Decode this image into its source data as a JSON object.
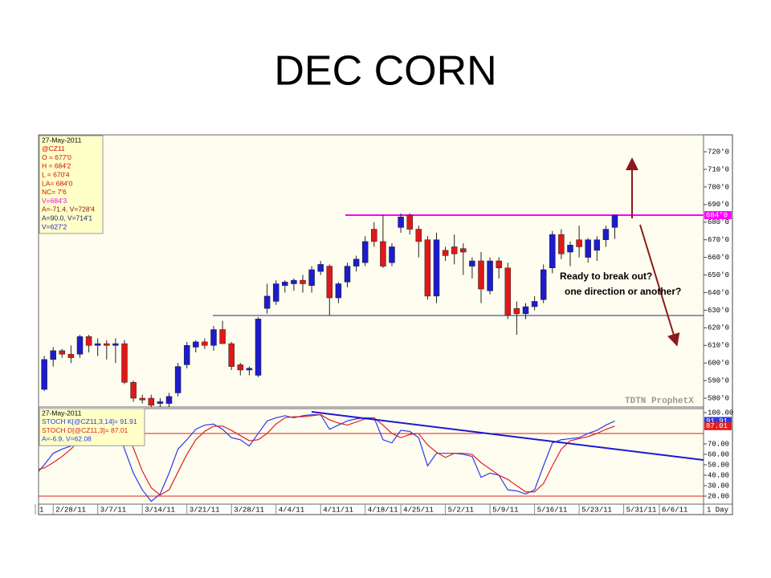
{
  "title": "DEC CORN",
  "chart_data": [
    {
      "type": "candlestick",
      "up_color": "#1c1ccc",
      "down_color": "#e01818",
      "ylim": [
        575,
        729.6
      ],
      "yticks": [
        {
          "value": 720,
          "label": "720'0"
        },
        {
          "value": 710,
          "label": "710'0"
        },
        {
          "value": 700,
          "label": "700'0"
        },
        {
          "value": 690,
          "label": "690'0"
        },
        {
          "value": 680,
          "label": "680'0"
        },
        {
          "value": 670,
          "label": "670'0"
        },
        {
          "value": 660,
          "label": "660'0"
        },
        {
          "value": 650,
          "label": "650'0"
        },
        {
          "value": 640,
          "label": "640'0"
        },
        {
          "value": 630,
          "label": "630'0"
        },
        {
          "value": 620,
          "label": "620'0"
        },
        {
          "value": 610,
          "label": "610'0"
        },
        {
          "value": 600,
          "label": "600'0"
        },
        {
          "value": 590,
          "label": "590'0"
        },
        {
          "value": 580,
          "label": "580'0"
        }
      ],
      "open": [
        null,
        585,
        602,
        607,
        605,
        605,
        615,
        610,
        611,
        610,
        611,
        589,
        580,
        580,
        577,
        577,
        583,
        599,
        609,
        612,
        610,
        619,
        611,
        599,
        596,
        593,
        631,
        635,
        644,
        645,
        647,
        644,
        652,
        655,
        637,
        646,
        655,
        657,
        676,
        669,
        657,
        677,
        684,
        676,
        670,
        638,
        664,
        666,
        665,
        655,
        658,
        641,
        658,
        654,
        631,
        628,
        632,
        636,
        654,
        673,
        663,
        670,
        660,
        664,
        670,
        677,
        null,
        null,
        null,
        null,
        null,
        null,
        null,
        null,
        null,
        null
      ],
      "high": [
        null,
        604,
        609,
        608,
        610,
        616,
        616,
        614,
        613,
        614,
        613,
        590,
        582,
        582,
        580,
        583,
        600,
        612,
        613,
        614,
        621,
        624,
        612,
        600,
        598,
        626,
        645,
        647,
        647,
        648,
        650,
        655,
        658,
        656,
        646,
        657,
        661,
        672,
        680,
        684,
        668,
        685,
        685,
        678,
        672,
        674,
        666,
        673,
        668,
        660,
        663,
        660,
        660,
        657,
        635,
        634,
        638,
        656,
        675,
        676,
        669,
        678,
        671,
        672,
        678,
        684.25,
        null,
        null,
        null,
        null,
        null,
        null,
        null,
        null,
        null,
        null
      ],
      "low": [
        null,
        584,
        598,
        603,
        600,
        603,
        606,
        604,
        602,
        600,
        588,
        578,
        577,
        574,
        575,
        575,
        581,
        597,
        606,
        608,
        607,
        611,
        596,
        593,
        593,
        592,
        628,
        633,
        640,
        641,
        640,
        640,
        650,
        627,
        634,
        643,
        652,
        655,
        666,
        654,
        655,
        674,
        673,
        660,
        636,
        634,
        658,
        656,
        650,
        648,
        634,
        639,
        648,
        625,
        616,
        625,
        630,
        634,
        651,
        659,
        655,
        660,
        657,
        658,
        666,
        670.5,
        null,
        null,
        null,
        null,
        null,
        null,
        null,
        null,
        null,
        null
      ],
      "close": [
        null,
        602,
        607,
        605,
        603,
        615,
        610,
        611,
        610,
        611,
        589,
        580,
        579,
        576,
        578,
        581,
        598,
        610,
        612,
        610,
        619,
        611,
        598,
        596,
        597,
        625,
        638,
        645,
        646,
        647,
        645,
        653,
        656,
        637,
        645,
        655,
        659,
        669,
        669,
        655,
        666,
        683,
        676,
        669,
        638,
        670,
        661,
        662,
        663,
        658,
        642,
        658,
        654,
        627,
        628,
        632,
        635,
        653,
        673,
        662,
        667,
        666,
        670,
        670,
        676,
        684,
        null,
        null,
        null,
        null,
        null,
        null,
        null,
        null,
        null,
        null
      ],
      "hlines": [
        {
          "value": 684,
          "color": "#ff00ff"
        },
        {
          "value": 627,
          "color": "#1a2a8c"
        }
      ],
      "last_price": {
        "value": 684,
        "label": "684'0",
        "color": "#ff00ff"
      },
      "legend_lines": [
        {
          "text": "27-May-2011",
          "color": "#000000"
        },
        {
          "text": "@CZ11",
          "color": "#d01010"
        },
        {
          "text": "O = 677'0",
          "color": "#d01010"
        },
        {
          "text": "H = 684'2",
          "color": "#d01010"
        },
        {
          "text": "L = 670'4",
          "color": "#d01010"
        },
        {
          "text": "LA= 684'0",
          "color": "#d01010"
        },
        {
          "text": "NC= 7'6",
          "color": "#d01010"
        },
        {
          "text": "V=684'3",
          "color": "#e010e0"
        },
        {
          "text": "A=-71.4, V=728'4",
          "color": "#8b1010"
        },
        {
          "text": "A=90.0, V=714'1",
          "color": "#1a1a6c"
        },
        {
          "text": "V=627'2",
          "color": "#2020d0"
        }
      ],
      "annotations": [
        "Ready to break out?",
        "one direction or another?"
      ],
      "watermark": "TDTN ProphetX"
    },
    {
      "type": "line",
      "ylim": [
        12.3,
        103.8
      ],
      "yticks": [
        {
          "value": 100,
          "label": "100.00"
        },
        {
          "value": 70,
          "label": "70.00"
        },
        {
          "value": 60,
          "label": "60.00"
        },
        {
          "value": 50,
          "label": "50.00"
        },
        {
          "value": 40,
          "label": "40.00"
        },
        {
          "value": 30,
          "label": "30.00"
        },
        {
          "value": 20,
          "label": "20.00"
        }
      ],
      "categories": [
        "1",
        null,
        "2/28/11",
        null,
        null,
        null,
        null,
        "3/7/11",
        null,
        null,
        null,
        null,
        "3/14/11",
        null,
        null,
        null,
        null,
        "3/21/11",
        null,
        null,
        null,
        null,
        "3/28/11",
        null,
        null,
        null,
        null,
        "4/4/11",
        null,
        null,
        null,
        null,
        "4/11/11",
        null,
        null,
        null,
        null,
        "4/18/11",
        null,
        null,
        null,
        "4/25/11",
        null,
        null,
        null,
        null,
        "5/2/11",
        null,
        null,
        null,
        null,
        "5/9/11",
        null,
        null,
        null,
        null,
        "5/16/11",
        null,
        null,
        null,
        null,
        "5/23/11",
        null,
        null,
        null,
        null,
        "5/31/11",
        null,
        null,
        null,
        "6/6/11",
        null,
        null,
        null,
        null,
        null
      ],
      "series": [
        {
          "name": "STOCH K",
          "color": "#2a3ae8",
          "values": [
            40,
            50,
            61,
            65,
            68,
            88,
            95,
            92,
            92,
            92,
            65,
            42,
            26,
            15,
            22,
            42,
            65,
            74,
            84,
            88,
            89,
            84,
            76,
            74,
            68,
            80,
            92,
            95,
            97,
            95,
            97,
            98,
            98,
            84,
            88,
            92,
            94,
            95,
            95,
            74,
            71,
            83,
            82,
            76,
            49,
            61,
            61,
            61,
            60,
            58,
            38,
            42,
            40,
            26,
            25,
            22,
            26,
            49,
            71,
            74,
            75,
            76,
            80,
            83,
            88,
            91.91,
            null,
            null,
            null,
            null,
            null,
            null,
            null,
            null,
            null,
            null
          ]
        },
        {
          "name": "STOCH D",
          "color": "#e02020",
          "values": [
            45,
            47,
            52,
            58,
            65,
            74,
            84,
            92,
            93,
            92,
            83,
            66,
            44,
            28,
            21,
            26,
            43,
            60,
            74,
            82,
            87,
            87,
            83,
            78,
            73,
            74,
            80,
            89,
            95,
            96,
            96,
            97,
            98,
            93,
            90,
            88,
            91,
            94,
            95,
            88,
            80,
            76,
            79,
            80,
            69,
            62,
            57,
            61,
            61,
            60,
            52,
            46,
            40,
            36,
            30,
            24,
            24,
            32,
            49,
            65,
            73,
            75,
            77,
            80,
            84,
            87.01,
            null,
            null,
            null,
            null,
            null,
            null,
            null,
            null,
            null,
            null
          ]
        }
      ],
      "hlines": [
        {
          "value": 80,
          "color": "#e02020"
        },
        {
          "value": 20,
          "color": "#e02020"
        }
      ],
      "last_labels": [
        {
          "value": 91.91,
          "label": "91.91",
          "color": "#2a3ae8"
        },
        {
          "value": 87.01,
          "label": "87.01",
          "color": "#e02020"
        }
      ],
      "legend_lines": [
        {
          "text": "27-May-2011",
          "color": "#000000"
        },
        {
          "text": "STOCH K[@CZ11,3,14]= 91.91",
          "color": "#2a3ae8"
        },
        {
          "text": "STOCH D[@CZ11,3]= 87.01",
          "color": "#e02020"
        },
        {
          "text": "A=-6.9, V=62.08",
          "color": "#2a3ae8"
        }
      ],
      "period": "1 Day"
    }
  ]
}
